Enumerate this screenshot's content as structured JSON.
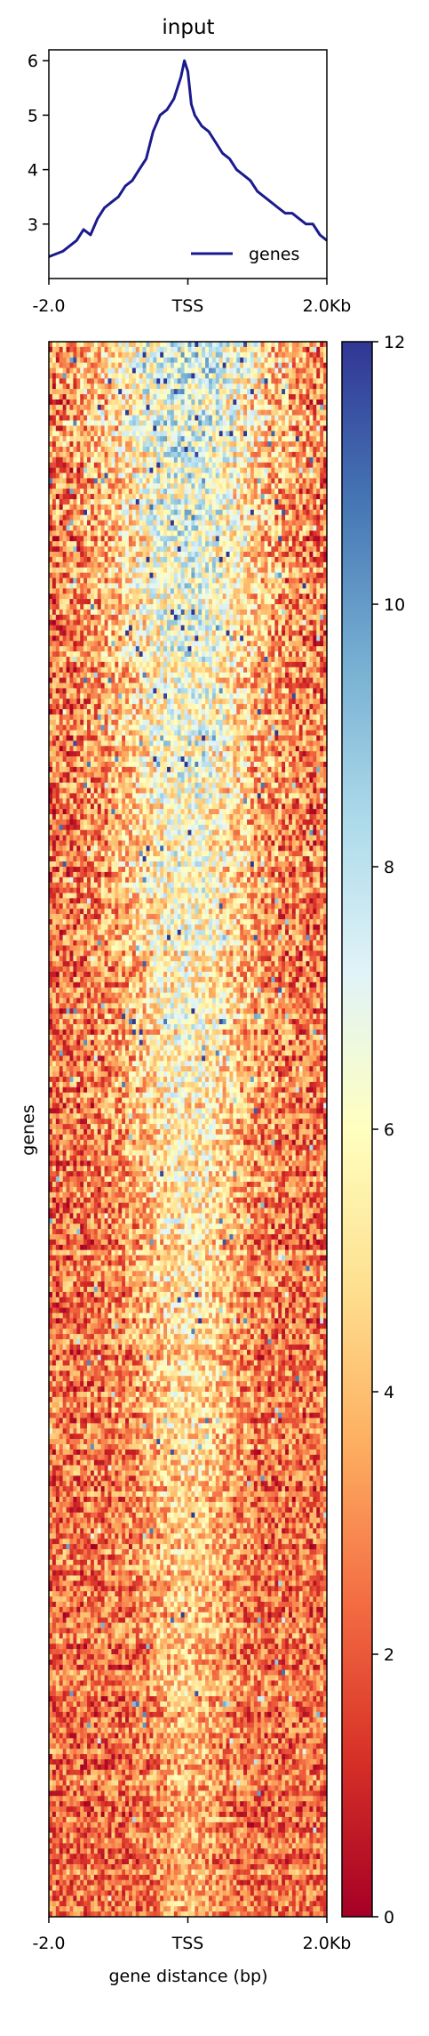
{
  "chart_data": [
    {
      "type": "line",
      "title": "input",
      "xlabel": "",
      "ylabel": "",
      "x_ticks": [
        "-2.0",
        "TSS",
        "2.0Kb"
      ],
      "xlim": [
        -2000,
        2000
      ],
      "ylim": [
        2.0,
        6.2
      ],
      "y_ticks": [
        3,
        4,
        5,
        6
      ],
      "grid": false,
      "legend_position": "lower-right",
      "series": [
        {
          "name": "genes",
          "color": "#1a1a8c",
          "x": [
            -2000,
            -1800,
            -1600,
            -1500,
            -1400,
            -1300,
            -1200,
            -1100,
            -1000,
            -900,
            -800,
            -700,
            -600,
            -500,
            -400,
            -300,
            -200,
            -100,
            -50,
            0,
            50,
            100,
            150,
            200,
            300,
            400,
            500,
            600,
            700,
            800,
            900,
            1000,
            1100,
            1200,
            1300,
            1400,
            1500,
            1600,
            1700,
            1800,
            1900,
            2000
          ],
          "y": [
            2.4,
            2.5,
            2.7,
            2.9,
            2.8,
            3.1,
            3.3,
            3.4,
            3.5,
            3.7,
            3.8,
            4.0,
            4.2,
            4.7,
            5.0,
            5.1,
            5.3,
            5.7,
            6.0,
            5.8,
            5.2,
            5.0,
            4.9,
            4.8,
            4.7,
            4.5,
            4.3,
            4.2,
            4.0,
            3.9,
            3.8,
            3.6,
            3.5,
            3.4,
            3.3,
            3.2,
            3.2,
            3.1,
            3.0,
            3.0,
            2.8,
            2.7
          ]
        }
      ]
    },
    {
      "type": "heatmap",
      "title": "",
      "xlabel": "gene distance (bp)",
      "ylabel": "genes",
      "x_ticks": [
        "-2.0",
        "TSS",
        "2.0Kb"
      ],
      "colormap": "RdYlBu",
      "color_min": 0,
      "color_max": 12,
      "colorbar_ticks": [
        0,
        2,
        4,
        6,
        8,
        10,
        12
      ],
      "rows_sorted_by_mean": "descending",
      "center_peak_mean": 6.0,
      "flank_mean": 2.5
    }
  ]
}
